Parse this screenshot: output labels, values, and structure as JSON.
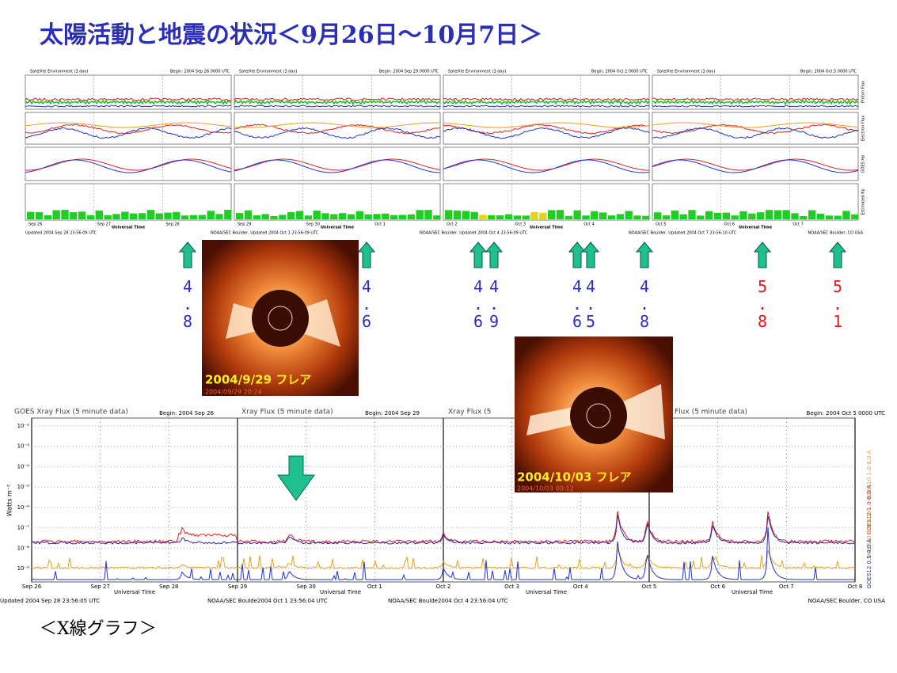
{
  "title": "太陽活動と地震の状況＜9月26日～10月7日＞",
  "top_panels": [
    {
      "title": "Satellite Environment (3 day)",
      "begin": "Begin: 2004 Sep 26 0000 UTC",
      "xlabel": "Universal Time",
      "ticks": [
        "Sep 26",
        "Sep 27",
        "Sep 28"
      ],
      "updated": "Updated 2004 Sep 28 23:56:09 UTC"
    },
    {
      "title": "Satellite Environment (3 day)",
      "begin": "Begin: 2004 Sep 29 0000 UTC",
      "xlabel": "Universal Time",
      "ticks": [
        "Sep 29",
        "Sep 30",
        "Oct 1"
      ],
      "updated": "NOAA/SEC Boulder, Updated 2004 Oct 1 23:56:09 UTC"
    },
    {
      "title": "Satellite Environment (3 day)",
      "begin": "Begin: 2004 Oct 2 0000 UTC",
      "xlabel": "Universal Time",
      "ticks": [
        "Oct 2",
        "Oct 3",
        "Oct 4"
      ],
      "updated": "NOAA/SEC Boulder, Updated 2004 Oct 4 23:56:09 UTC"
    },
    {
      "title": "Satellite Environment (3 day)",
      "begin": "Begin: 2004 Oct 5 0000 UTC",
      "xlabel": "Universal Time",
      "ticks": [
        "Oct 5",
        "Oct 6",
        "Oct 7"
      ],
      "updated": "NOAA/SEC Boulder, Updated 2004 Oct 7 23:56:10 UTC"
    }
  ],
  "top_side_labels": [
    "Proton Flux",
    "Electron Flux",
    "GOES Hp",
    "Estimated Kp"
  ],
  "top_footer": "NOAA/SEC Boulder, CO USA",
  "events": [
    {
      "magnitude": "4.8",
      "color": "#2a2fc4"
    },
    {
      "magnitude": "4.6",
      "color": "#2a2fc4"
    },
    {
      "magnitude": "4.6",
      "color": "#2a2fc4"
    },
    {
      "magnitude": "4.9",
      "color": "#2a2fc4"
    },
    {
      "magnitude": "4.6",
      "color": "#2a2fc4"
    },
    {
      "magnitude": "4.5",
      "color": "#2a2fc4"
    },
    {
      "magnitude": "4.8",
      "color": "#2a2fc4"
    },
    {
      "magnitude": "5.8",
      "color": "#e8141a"
    },
    {
      "magnitude": "5.1",
      "color": "#e8141a"
    }
  ],
  "images": [
    {
      "caption": "2004/9/29  フレア",
      "timestamp": "2004/09/29 20:24"
    },
    {
      "caption": "2004/10/03  フレア",
      "timestamp": "2004/10/03 00:12"
    }
  ],
  "xray": {
    "panels": [
      {
        "title": "GOES Xray Flux (5 minute data)",
        "begin": "Begin:  2004 Sep 26"
      },
      {
        "title": "Xray Flux (5 minute data)",
        "begin": "Begin:  2004 Sep 29"
      },
      {
        "title": "Xray Flux (5",
        "begin": ""
      },
      {
        "title": "Flux (5 minute data)",
        "begin": "Begin:  2004 Oct 5 0000 UTC"
      }
    ],
    "yticks": [
      "10⁻²",
      "10⁻³",
      "10⁻⁴",
      "10⁻⁵",
      "10⁻⁶",
      "10⁻⁷",
      "10⁻⁸",
      "10⁻⁹"
    ],
    "ylabel": "Watts m⁻²",
    "xticks": [
      "Sep 26",
      "Sep 27",
      "Sep 28",
      "Sep 29",
      "Sep 30",
      "Oct 1",
      "Oct 2",
      "Oct 3",
      "Oct 4",
      "Oct 5",
      "Oct 6",
      "Oct 7",
      "Oct 8"
    ],
    "xlabel": "Universal Time",
    "legend": [
      "GOES10 1.0-8.0 A",
      "GOES12 1.0-8.0 A",
      "GOES10 0.5-4.0 A",
      "GOES12 0.5-4.0 A"
    ],
    "updated": [
      "Updated 2004 Sep 28 23:56:05 UTC",
      "NOAA/SEC Boulde2004 Oct  1 23:56:04 UTC",
      "NOAA/SEC Boulde2004 Oct  4 23:56:04 UTC",
      "NOAA/SEC Boulder, CO USA"
    ]
  },
  "caption": "＜X線グラフ＞"
}
